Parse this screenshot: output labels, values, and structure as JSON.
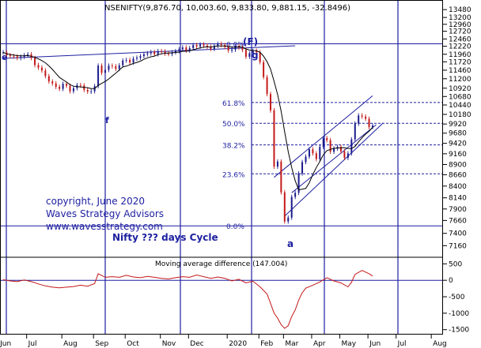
{
  "chart_data": [
    {
      "type": "candlestick",
      "title": "NSENIFTY(9,876.70, 10,003.60, 9,833.80, 9,881.15, -32.8496)",
      "x_ticks": [
        "Jun",
        "Jul",
        "Aug",
        "Sep",
        "Oct",
        "Nov",
        "Dec",
        "2020",
        "Feb",
        "Mar",
        "Apr",
        "May",
        "Jun",
        "Jul",
        "Aug"
      ],
      "y_ticks": [
        7160,
        7400,
        7660,
        7900,
        8140,
        8400,
        8660,
        8900,
        9160,
        9420,
        9680,
        9920,
        10180,
        10440,
        10680,
        10920,
        11200,
        11460,
        11720,
        11960,
        12220,
        12460,
        12720,
        12960,
        13200,
        13480
      ],
      "ylim": [
        7000,
        13600
      ],
      "series_close": [
        [
          0,
          12020
        ],
        [
          1,
          11930
        ],
        [
          2,
          11900
        ],
        [
          3,
          11890
        ],
        [
          4,
          11840
        ],
        [
          5,
          11880
        ],
        [
          6,
          11930
        ],
        [
          7,
          11960
        ],
        [
          8,
          11840
        ],
        [
          9,
          11620
        ],
        [
          10,
          11540
        ],
        [
          11,
          11450
        ],
        [
          12,
          11280
        ],
        [
          13,
          11120
        ],
        [
          14,
          11060
        ],
        [
          15,
          10960
        ],
        [
          16,
          10900
        ],
        [
          17,
          11050
        ],
        [
          18,
          10990
        ],
        [
          19,
          10830
        ],
        [
          20,
          10920
        ],
        [
          21,
          11010
        ],
        [
          22,
          11000
        ],
        [
          23,
          10870
        ],
        [
          24,
          10820
        ],
        [
          25,
          10830
        ],
        [
          26,
          10980
        ],
        [
          27,
          11600
        ],
        [
          28,
          11380
        ],
        [
          29,
          11470
        ],
        [
          30,
          11600
        ],
        [
          31,
          11580
        ],
        [
          32,
          11500
        ],
        [
          33,
          11610
        ],
        [
          34,
          11760
        ],
        [
          35,
          11780
        ],
        [
          36,
          11700
        ],
        [
          37,
          11820
        ],
        [
          38,
          11850
        ],
        [
          39,
          11900
        ],
        [
          40,
          11960
        ],
        [
          41,
          11990
        ],
        [
          42,
          12030
        ],
        [
          43,
          11960
        ],
        [
          44,
          12060
        ],
        [
          45,
          12050
        ],
        [
          46,
          11980
        ],
        [
          47,
          11970
        ],
        [
          48,
          12020
        ],
        [
          49,
          12060
        ],
        [
          50,
          12120
        ],
        [
          51,
          12180
        ],
        [
          52,
          12080
        ],
        [
          53,
          12160
        ],
        [
          54,
          12260
        ],
        [
          55,
          12210
        ],
        [
          56,
          12280
        ],
        [
          57,
          12240
        ],
        [
          58,
          12200
        ],
        [
          59,
          12130
        ],
        [
          60,
          12230
        ],
        [
          61,
          12300
        ],
        [
          62,
          12260
        ],
        [
          63,
          12200
        ],
        [
          64,
          12080
        ],
        [
          65,
          12110
        ],
        [
          66,
          12230
        ],
        [
          67,
          12180
        ],
        [
          68,
          12100
        ],
        [
          69,
          11880
        ],
        [
          70,
          11990
        ],
        [
          71,
          12070
        ],
        [
          72,
          12020
        ],
        [
          73,
          11710
        ],
        [
          74,
          11250
        ],
        [
          75,
          10750
        ],
        [
          76,
          10290
        ],
        [
          77,
          8850
        ],
        [
          78,
          8970
        ],
        [
          79,
          8260
        ],
        [
          80,
          7640
        ],
        [
          81,
          7720
        ],
        [
          82,
          8160
        ],
        [
          83,
          8250
        ],
        [
          84,
          8690
        ],
        [
          85,
          8960
        ],
        [
          86,
          9090
        ],
        [
          87,
          9270
        ],
        [
          88,
          9170
        ],
        [
          89,
          9030
        ],
        [
          90,
          9330
        ],
        [
          91,
          9550
        ],
        [
          92,
          9500
        ],
        [
          93,
          9210
        ],
        [
          94,
          9290
        ],
        [
          95,
          9330
        ],
        [
          96,
          9220
        ],
        [
          97,
          9060
        ],
        [
          98,
          9170
        ],
        [
          99,
          9520
        ],
        [
          100,
          9930
        ],
        [
          101,
          10150
        ],
        [
          102,
          10120
        ],
        [
          103,
          10060
        ],
        [
          104,
          9840
        ],
        [
          105,
          9880
        ]
      ],
      "moving_average_note": "",
      "wave_labels": [
        "e",
        "(F)",
        "g",
        "f",
        "a"
      ],
      "fib_levels": [
        {
          "label": "0.0%",
          "value": 12300
        },
        {
          "label": "61.8%",
          "value": 10510
        },
        {
          "label": "50.0%",
          "value": 9940
        },
        {
          "label": "38.2%",
          "value": 9380
        },
        {
          "label": "23.6%",
          "value": 8680
        },
        {
          "label": "0.0%",
          "value": 7550
        }
      ],
      "annotations": [
        "copyright, June 2020",
        "Waves Strategy Advisors",
        "www.wavesstrategy.com",
        "Nifty ??? days Cycle"
      ]
    },
    {
      "type": "line",
      "title": "Moving average difference (147.004)",
      "y_ticks": [
        500,
        0,
        -500,
        -1000,
        -1500
      ],
      "ylim": [
        -1650,
        700
      ],
      "series": [
        {
          "values": [
            [
              0,
              20
            ],
            [
              2,
              -20
            ],
            [
              4,
              -40
            ],
            [
              6,
              10
            ],
            [
              8,
              -40
            ],
            [
              10,
              -110
            ],
            [
              12,
              -170
            ],
            [
              14,
              -210
            ],
            [
              16,
              -230
            ],
            [
              18,
              -210
            ],
            [
              20,
              -190
            ],
            [
              22,
              -150
            ],
            [
              24,
              -180
            ],
            [
              26,
              -100
            ],
            [
              27,
              200
            ],
            [
              29,
              90
            ],
            [
              31,
              110
            ],
            [
              33,
              90
            ],
            [
              35,
              150
            ],
            [
              37,
              100
            ],
            [
              39,
              80
            ],
            [
              41,
              120
            ],
            [
              43,
              90
            ],
            [
              45,
              60
            ],
            [
              47,
              40
            ],
            [
              49,
              80
            ],
            [
              51,
              110
            ],
            [
              53,
              90
            ],
            [
              55,
              160
            ],
            [
              57,
              110
            ],
            [
              59,
              60
            ],
            [
              61,
              100
            ],
            [
              63,
              60
            ],
            [
              65,
              -20
            ],
            [
              67,
              30
            ],
            [
              69,
              -80
            ],
            [
              71,
              -30
            ],
            [
              73,
              -200
            ],
            [
              75,
              -420
            ],
            [
              76,
              -700
            ],
            [
              77,
              -1000
            ],
            [
              78,
              -1150
            ],
            [
              79,
              -1350
            ],
            [
              80,
              -1460
            ],
            [
              81,
              -1380
            ],
            [
              82,
              -1100
            ],
            [
              83,
              -900
            ],
            [
              84,
              -600
            ],
            [
              85,
              -380
            ],
            [
              86,
              -240
            ],
            [
              88,
              -150
            ],
            [
              90,
              -50
            ],
            [
              92,
              80
            ],
            [
              94,
              -20
            ],
            [
              96,
              -80
            ],
            [
              98,
              -200
            ],
            [
              99,
              -60
            ],
            [
              100,
              180
            ],
            [
              102,
              300
            ],
            [
              104,
              200
            ],
            [
              105,
              130
            ]
          ]
        }
      ]
    }
  ]
}
